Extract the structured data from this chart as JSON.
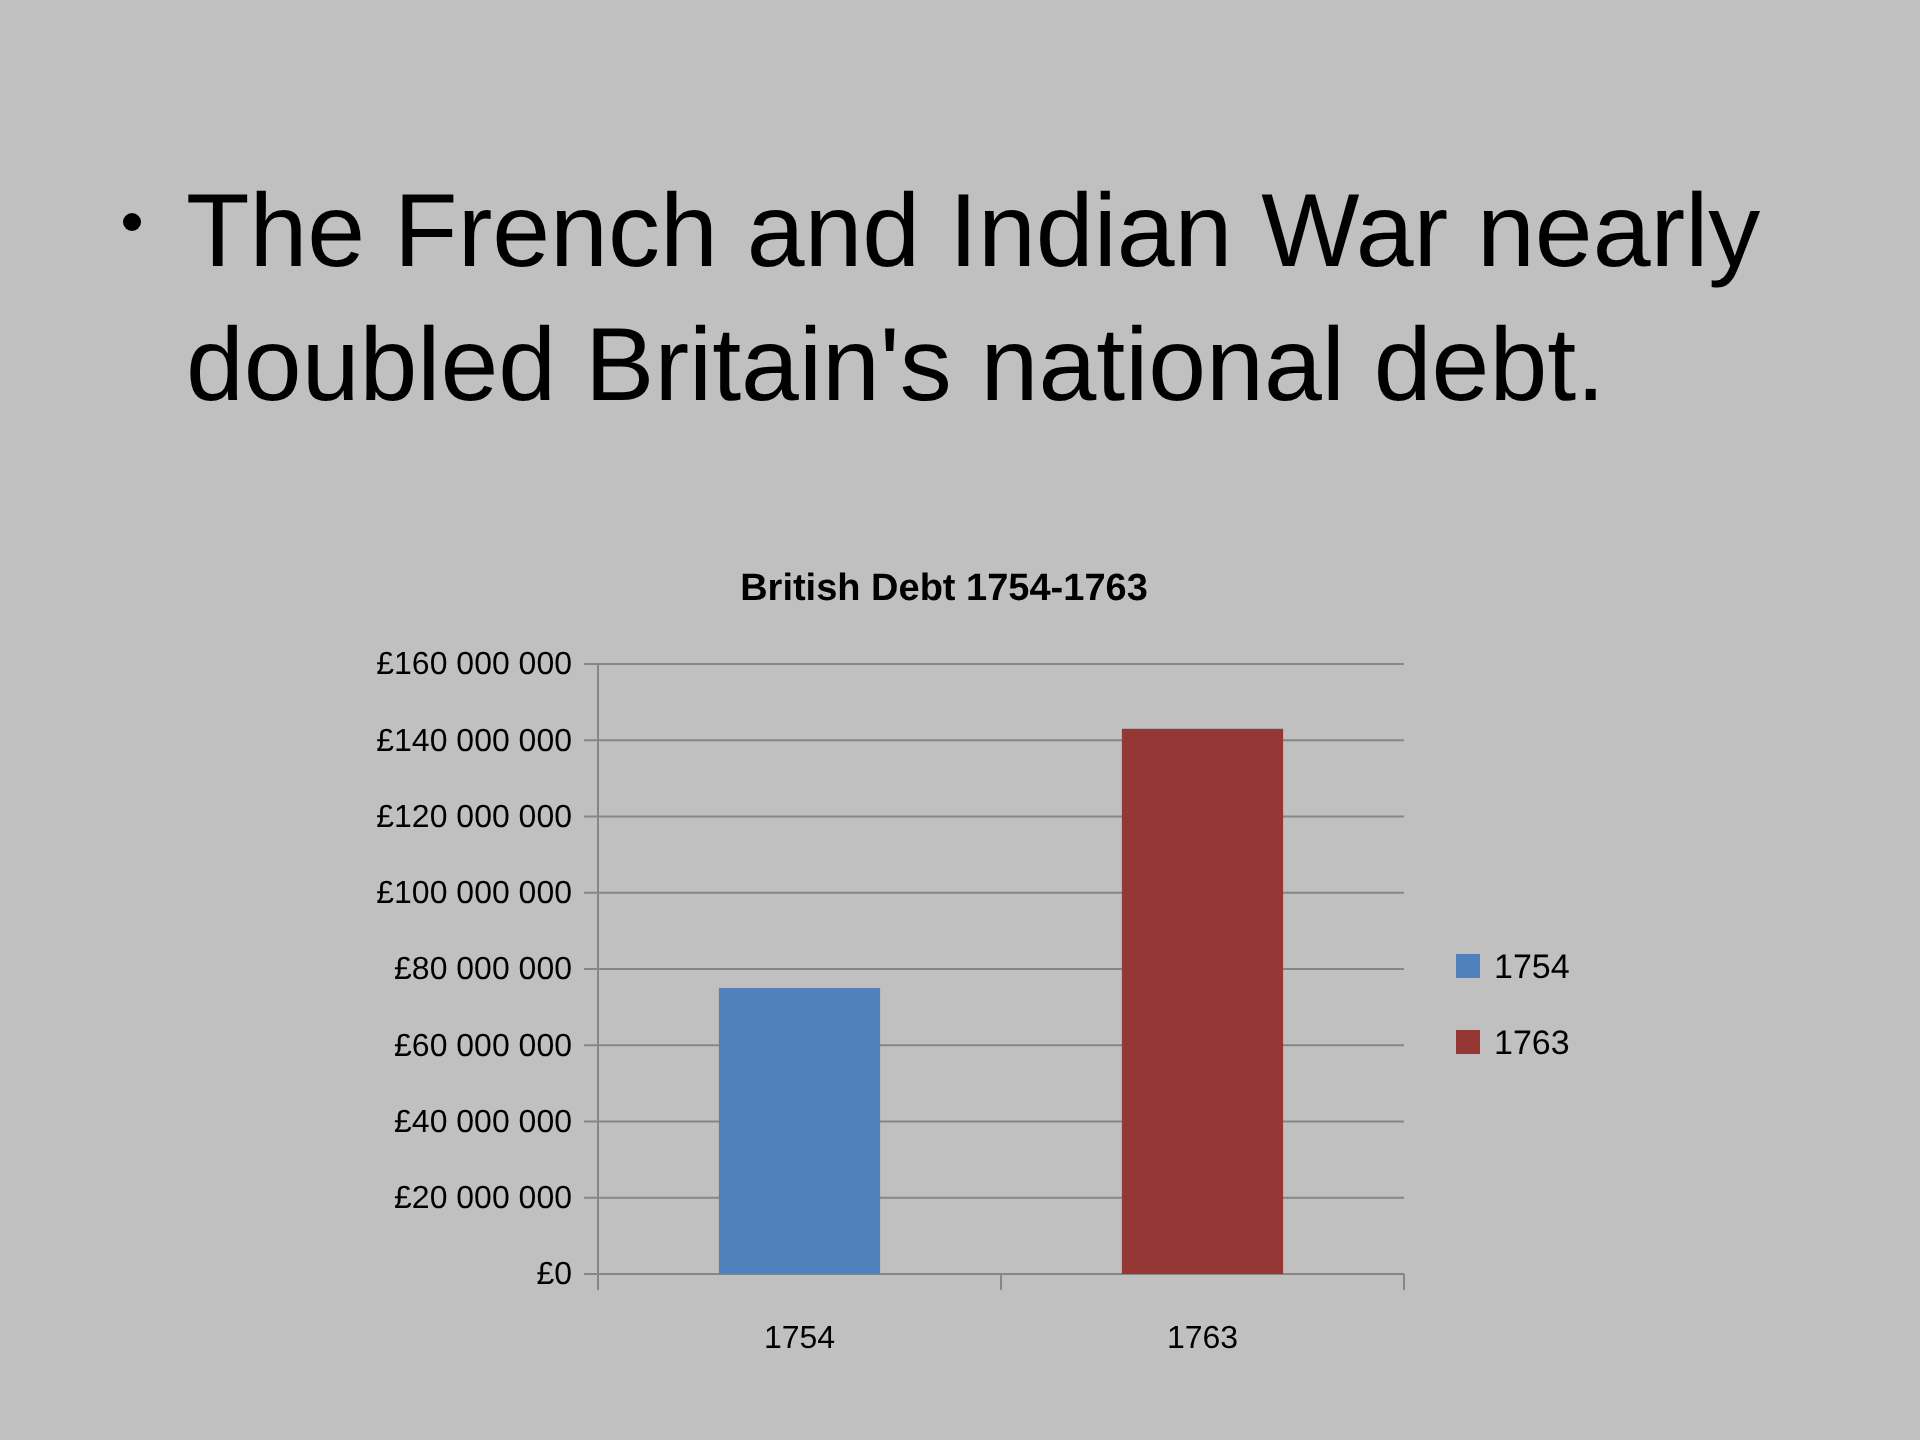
{
  "chart_data": {
    "type": "bar",
    "title": "British Debt 1754-1763",
    "annotations": [
      "The French and Indian War nearly doubled Britain's national debt."
    ],
    "categories": [
      "1754",
      "1763"
    ],
    "series": [
      {
        "name": "1754",
        "color": "#4f81bd",
        "values": [
          75000000,
          null
        ]
      },
      {
        "name": "1763",
        "color": "#953735",
        "values": [
          null,
          143000000
        ]
      }
    ],
    "ylim": [
      0,
      160000000
    ],
    "yticks": [
      {
        "value": 0,
        "label": "£0"
      },
      {
        "value": 20000000,
        "label": "£20 000 000"
      },
      {
        "value": 40000000,
        "label": "£40 000 000"
      },
      {
        "value": 60000000,
        "label": "£60 000 000"
      },
      {
        "value": 80000000,
        "label": "£80 000 000"
      },
      {
        "value": 100000000,
        "label": "£100 000 000"
      },
      {
        "value": 120000000,
        "label": "£120 000 000"
      },
      {
        "value": 140000000,
        "label": "£140 000 000"
      },
      {
        "value": 160000000,
        "label": "£160 000 000"
      }
    ],
    "grid": "y",
    "legend": "right"
  }
}
